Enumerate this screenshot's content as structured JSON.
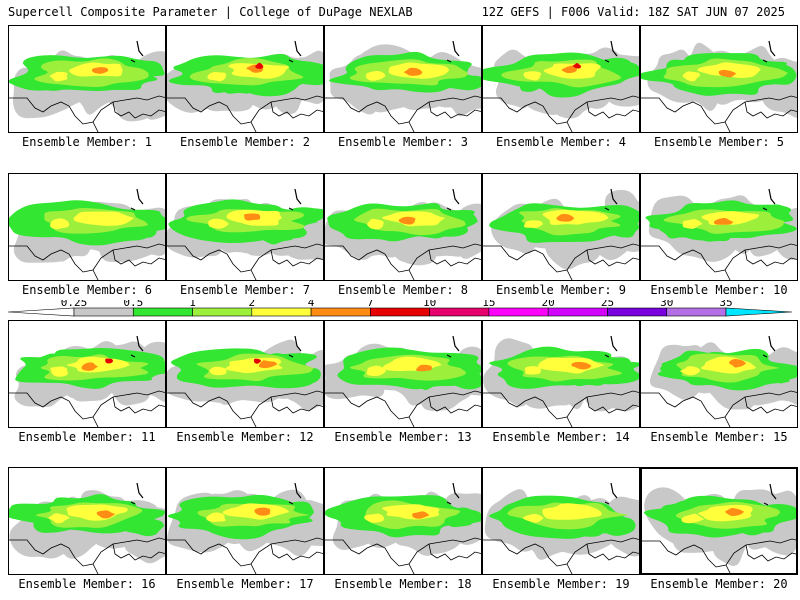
{
  "header": {
    "left_title": "Supercell Composite Parameter | College of DuPage NEXLAB",
    "right_title": "12Z GEFS | F006 Valid: 18Z SAT JUN 07 2025"
  },
  "color_scale": {
    "ticks": [
      "0.25",
      "0.5",
      "1",
      "2",
      "4",
      "7",
      "10",
      "15",
      "20",
      "25",
      "30",
      "35"
    ],
    "colors": [
      "#ffffff",
      "#c8c8c8",
      "#32e632",
      "#9cf03c",
      "#ffff3c",
      "#ff8c14",
      "#e60000",
      "#e6006e",
      "#ff00ff",
      "#d200ff",
      "#7800dc",
      "#b46ee6",
      "#00e6ff"
    ]
  },
  "panels": [
    {
      "label": "Ensemble Member: 1",
      "peak": 2
    },
    {
      "label": "Ensemble Member: 2",
      "peak": 3
    },
    {
      "label": "Ensemble Member: 3",
      "peak": 2
    },
    {
      "label": "Ensemble Member: 4",
      "peak": 3
    },
    {
      "label": "Ensemble Member: 5",
      "peak": 2
    },
    {
      "label": "Ensemble Member: 6",
      "peak": 1
    },
    {
      "label": "Ensemble Member: 7",
      "peak": 2
    },
    {
      "label": "Ensemble Member: 8",
      "peak": 2
    },
    {
      "label": "Ensemble Member: 9",
      "peak": 2
    },
    {
      "label": "Ensemble Member: 10",
      "peak": 2
    },
    {
      "label": "Ensemble Member: 11",
      "peak": 3
    },
    {
      "label": "Ensemble Member: 12",
      "peak": 3
    },
    {
      "label": "Ensemble Member: 13",
      "peak": 2
    },
    {
      "label": "Ensemble Member: 14",
      "peak": 2
    },
    {
      "label": "Ensemble Member: 15",
      "peak": 2
    },
    {
      "label": "Ensemble Member: 16",
      "peak": 2
    },
    {
      "label": "Ensemble Member: 17",
      "peak": 2
    },
    {
      "label": "Ensemble Member: 18",
      "peak": 2
    },
    {
      "label": "Ensemble Member: 19",
      "peak": 1
    },
    {
      "label": "Ensemble Member: 20",
      "peak": 2
    }
  ],
  "selected_panel": "Ensemble Member: 20"
}
